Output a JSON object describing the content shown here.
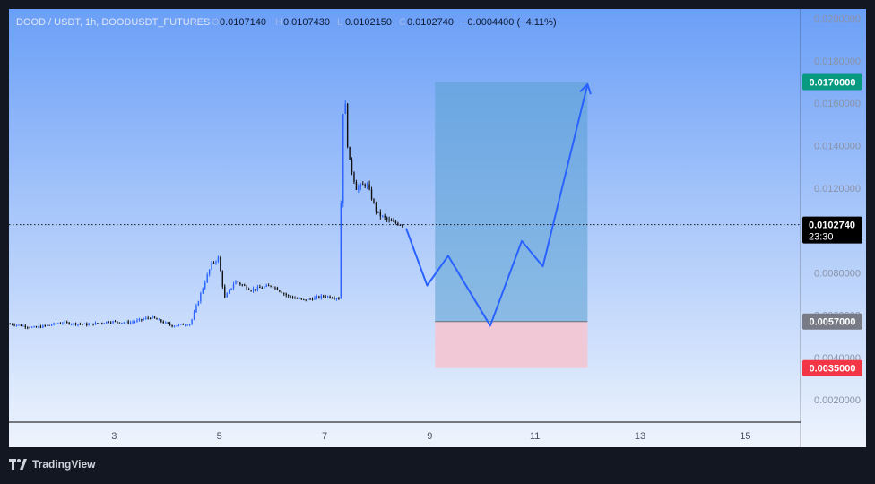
{
  "header": {
    "symbol": "DOOD / USDT, 1h, DOODUSDT_FUTURES",
    "o_label": "O",
    "o_value": "0.0107140",
    "h_label": "H",
    "h_value": "0.0107430",
    "l_label": "L",
    "l_value": "0.0102150",
    "c_label": "C",
    "c_value": "0.0102740",
    "change": "−0.0004400 (−4.11%)"
  },
  "footer": {
    "brand": "TradingView"
  },
  "colors": {
    "background": "#131722",
    "bg_top": "#6b9ff7",
    "bg_bottom": "#eef4fd",
    "candle_up": "#2962ff",
    "candle_down": "#111111",
    "projection_line": "#2962ff",
    "target_zone": "#5aa0d2",
    "stop_zone": "#f2c7d4",
    "target_badge": "#089981",
    "stop_badge": "#f23645",
    "entry_badge": "#787b86",
    "current_badge": "#000000"
  },
  "chart_data": {
    "type": "candlestick",
    "x_axis": {
      "ticks": [
        3,
        5,
        7,
        9,
        11,
        13,
        15
      ],
      "range": [
        1.0,
        16.05
      ]
    },
    "y_axis": {
      "ticks": [
        "0.0020000",
        "0.0040000",
        "0.0060000",
        "0.0080000",
        "0.0100000",
        "0.0120000",
        "0.0140000",
        "0.0160000",
        "0.0180000",
        "0.0200000"
      ],
      "range": [
        0.00095,
        0.02045
      ]
    },
    "current_price": {
      "value": 0.010274,
      "label": "0.0102740",
      "countdown": "23:30"
    },
    "price_path": [
      [
        1.0,
        0.0056
      ],
      [
        1.5,
        0.0054
      ],
      [
        2.0,
        0.00565
      ],
      [
        2.5,
        0.00555
      ],
      [
        2.9,
        0.0057
      ],
      [
        3.3,
        0.00565
      ],
      [
        3.7,
        0.0059
      ],
      [
        4.1,
        0.0055
      ],
      [
        4.45,
        0.0056
      ],
      [
        4.7,
        0.0074
      ],
      [
        4.85,
        0.0084
      ],
      [
        4.98,
        0.0087
      ],
      [
        5.1,
        0.0068
      ],
      [
        5.3,
        0.0076
      ],
      [
        5.6,
        0.0072
      ],
      [
        6.0,
        0.0074
      ],
      [
        6.3,
        0.0069
      ],
      [
        6.6,
        0.0067
      ],
      [
        7.0,
        0.0069
      ],
      [
        7.3,
        0.0068
      ],
      [
        7.32,
        0.0145
      ],
      [
        7.38,
        0.0165
      ],
      [
        7.45,
        0.0135
      ],
      [
        7.6,
        0.012
      ],
      [
        7.8,
        0.0122
      ],
      [
        8.0,
        0.0108
      ],
      [
        8.25,
        0.0104
      ],
      [
        8.5,
        0.01027
      ]
    ],
    "projection": {
      "x": [
        8.55,
        8.95,
        9.35,
        10.15,
        10.75,
        11.15,
        12.0
      ],
      "y": [
        0.0101,
        0.0074,
        0.0088,
        0.0055,
        0.0095,
        0.0083,
        0.0169
      ]
    },
    "position": {
      "x_start": 9.1,
      "x_end": 12.0,
      "target": {
        "value": 0.017,
        "label": "0.0170000"
      },
      "entry": {
        "value": 0.0057,
        "label": "0.0057000"
      },
      "stop": {
        "value": 0.0035,
        "label": "0.0035000"
      }
    }
  }
}
